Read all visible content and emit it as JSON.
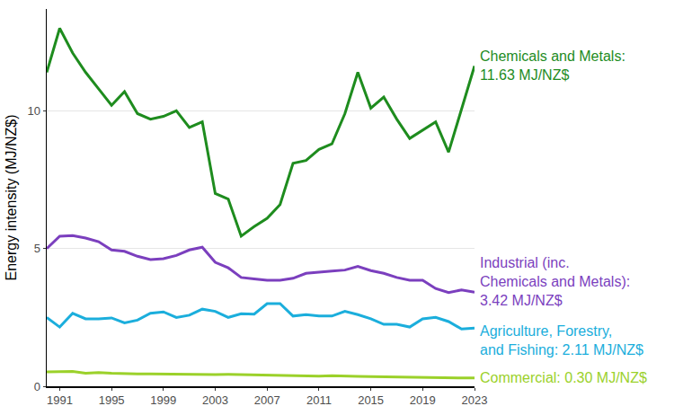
{
  "chart_data": {
    "type": "line",
    "y_label": "Energy intensity (MJ/NZ$)",
    "x": [
      1990,
      1991,
      1992,
      1993,
      1994,
      1995,
      1996,
      1997,
      1998,
      1999,
      2000,
      2001,
      2002,
      2003,
      2004,
      2005,
      2006,
      2007,
      2008,
      2009,
      2010,
      2011,
      2012,
      2013,
      2014,
      2015,
      2016,
      2017,
      2018,
      2019,
      2020,
      2021,
      2022,
      2023
    ],
    "xlim": [
      1990,
      2023
    ],
    "xticks": [
      1991,
      1995,
      1999,
      2003,
      2007,
      2011,
      2015,
      2019,
      2023
    ],
    "ylim": [
      0,
      13.7
    ],
    "yticks": [
      0,
      5,
      10
    ],
    "grid": true,
    "series": [
      {
        "label": [
          "Chemicals and Metals:",
          "11.63 MJ/NZ$"
        ],
        "color": "#1E8C1E",
        "values": [
          11.4,
          13.0,
          12.1,
          11.4,
          10.8,
          10.2,
          10.7,
          9.9,
          9.7,
          9.8,
          10.0,
          9.4,
          9.6,
          7.0,
          6.8,
          5.45,
          5.8,
          6.1,
          6.6,
          8.1,
          8.2,
          8.6,
          8.8,
          9.9,
          11.4,
          10.1,
          10.5,
          9.7,
          9.0,
          9.3,
          9.6,
          8.5,
          10.1,
          11.63
        ]
      },
      {
        "label": [
          "Industrial (inc.",
          "Chemicals and Metals):",
          "3.42 MJ/NZ$"
        ],
        "color": "#7B3FBE",
        "values": [
          5.0,
          5.45,
          5.47,
          5.38,
          5.25,
          4.95,
          4.9,
          4.72,
          4.6,
          4.63,
          4.75,
          4.95,
          5.05,
          4.5,
          4.3,
          3.95,
          3.9,
          3.85,
          3.85,
          3.92,
          4.1,
          4.15,
          4.18,
          4.22,
          4.35,
          4.2,
          4.1,
          3.95,
          3.85,
          3.85,
          3.55,
          3.4,
          3.5,
          3.42
        ]
      },
      {
        "label": [
          "Agriculture, Forestry,",
          "and Fishing: 2.11 MJ/NZ$"
        ],
        "color": "#1BAEDC",
        "values": [
          2.5,
          2.15,
          2.65,
          2.45,
          2.45,
          2.48,
          2.3,
          2.4,
          2.65,
          2.7,
          2.5,
          2.58,
          2.8,
          2.72,
          2.5,
          2.63,
          2.62,
          3.0,
          3.0,
          2.55,
          2.6,
          2.55,
          2.55,
          2.72,
          2.6,
          2.45,
          2.25,
          2.25,
          2.15,
          2.45,
          2.5,
          2.35,
          2.08,
          2.11
        ]
      },
      {
        "label": [
          "Commercial: 0.30 MJ/NZ$"
        ],
        "color": "#9BD12A",
        "values": [
          0.52,
          0.52,
          0.54,
          0.47,
          0.5,
          0.47,
          0.45,
          0.45,
          0.45,
          0.44,
          0.43,
          0.42,
          0.42,
          0.42,
          0.43,
          0.42,
          0.41,
          0.4,
          0.39,
          0.38,
          0.38,
          0.37,
          0.38,
          0.36,
          0.36,
          0.35,
          0.34,
          0.33,
          0.33,
          0.32,
          0.32,
          0.31,
          0.3,
          0.3
        ]
      }
    ]
  }
}
